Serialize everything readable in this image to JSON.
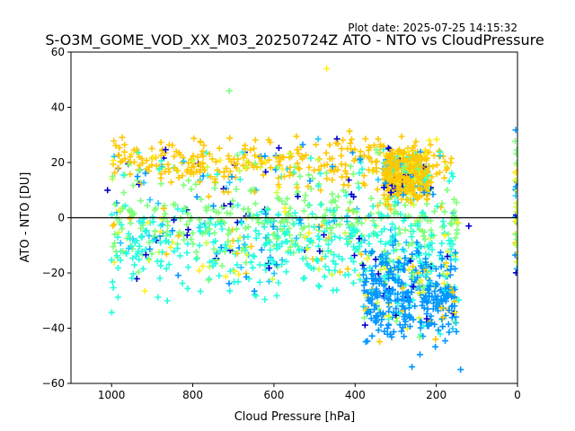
{
  "figure": {
    "plot_date": "Plot date: 2025-07-25 14:15:32",
    "title": "S-O3M_GOME_VOD_XX_M03_20250724Z ATO - NTO vs CloudPressure"
  },
  "chart_data": {
    "type": "scatter",
    "title": "S-O3M_GOME_VOD_XX_M03_20250724Z ATO - NTO vs CloudPressure",
    "xlabel": "Cloud Pressure [hPa]",
    "ylabel": "ATO - NTO [DU]",
    "xlim": [
      1100,
      0
    ],
    "ylim": [
      -60,
      60
    ],
    "x_inverted": true,
    "grid": false,
    "marker": "+",
    "xticks": [
      1000,
      800,
      600,
      400,
      200,
      0
    ],
    "yticks": [
      -60,
      -40,
      -20,
      0,
      20,
      40,
      60
    ],
    "reference_line": {
      "y": 0,
      "color": "#000000"
    },
    "colors": [
      "#0000cd",
      "#0096ff",
      "#1ec8ff",
      "#22ffdd",
      "#7dff7a",
      "#c8ff3c",
      "#fff01e",
      "#ffc800"
    ],
    "point_clouds": [
      {
        "x_range": [
          1000,
          140
        ],
        "y_center": -1,
        "y_spread": 13,
        "dominant_color": "#7dff7a"
      },
      {
        "x_range": [
          1000,
          140
        ],
        "y_center": -12,
        "y_spread": 14,
        "dominant_color": "#22ffdd"
      },
      {
        "x_range": [
          1000,
          150
        ],
        "y_center": 20,
        "y_spread": 8,
        "dominant_color": "#ffc800"
      },
      {
        "x_range": [
          380,
          150
        ],
        "y_center": -28,
        "y_spread": 14,
        "dominant_color": "#0096ff"
      },
      {
        "x_range": [
          330,
          220
        ],
        "y_center": 15,
        "y_spread": 8,
        "dominant_color": "#ffc800"
      }
    ],
    "outliers": [
      {
        "x": 470,
        "y": 54,
        "color": "#fff01e"
      },
      {
        "x": 710,
        "y": 46,
        "color": "#7dff7a"
      },
      {
        "x": 260,
        "y": -54,
        "color": "#0096ff"
      },
      {
        "x": 140,
        "y": -55,
        "color": "#0096ff"
      },
      {
        "x": 1010,
        "y": 10,
        "color": "#0000cd"
      },
      {
        "x": 120,
        "y": -3,
        "color": "#0000cd"
      }
    ]
  }
}
